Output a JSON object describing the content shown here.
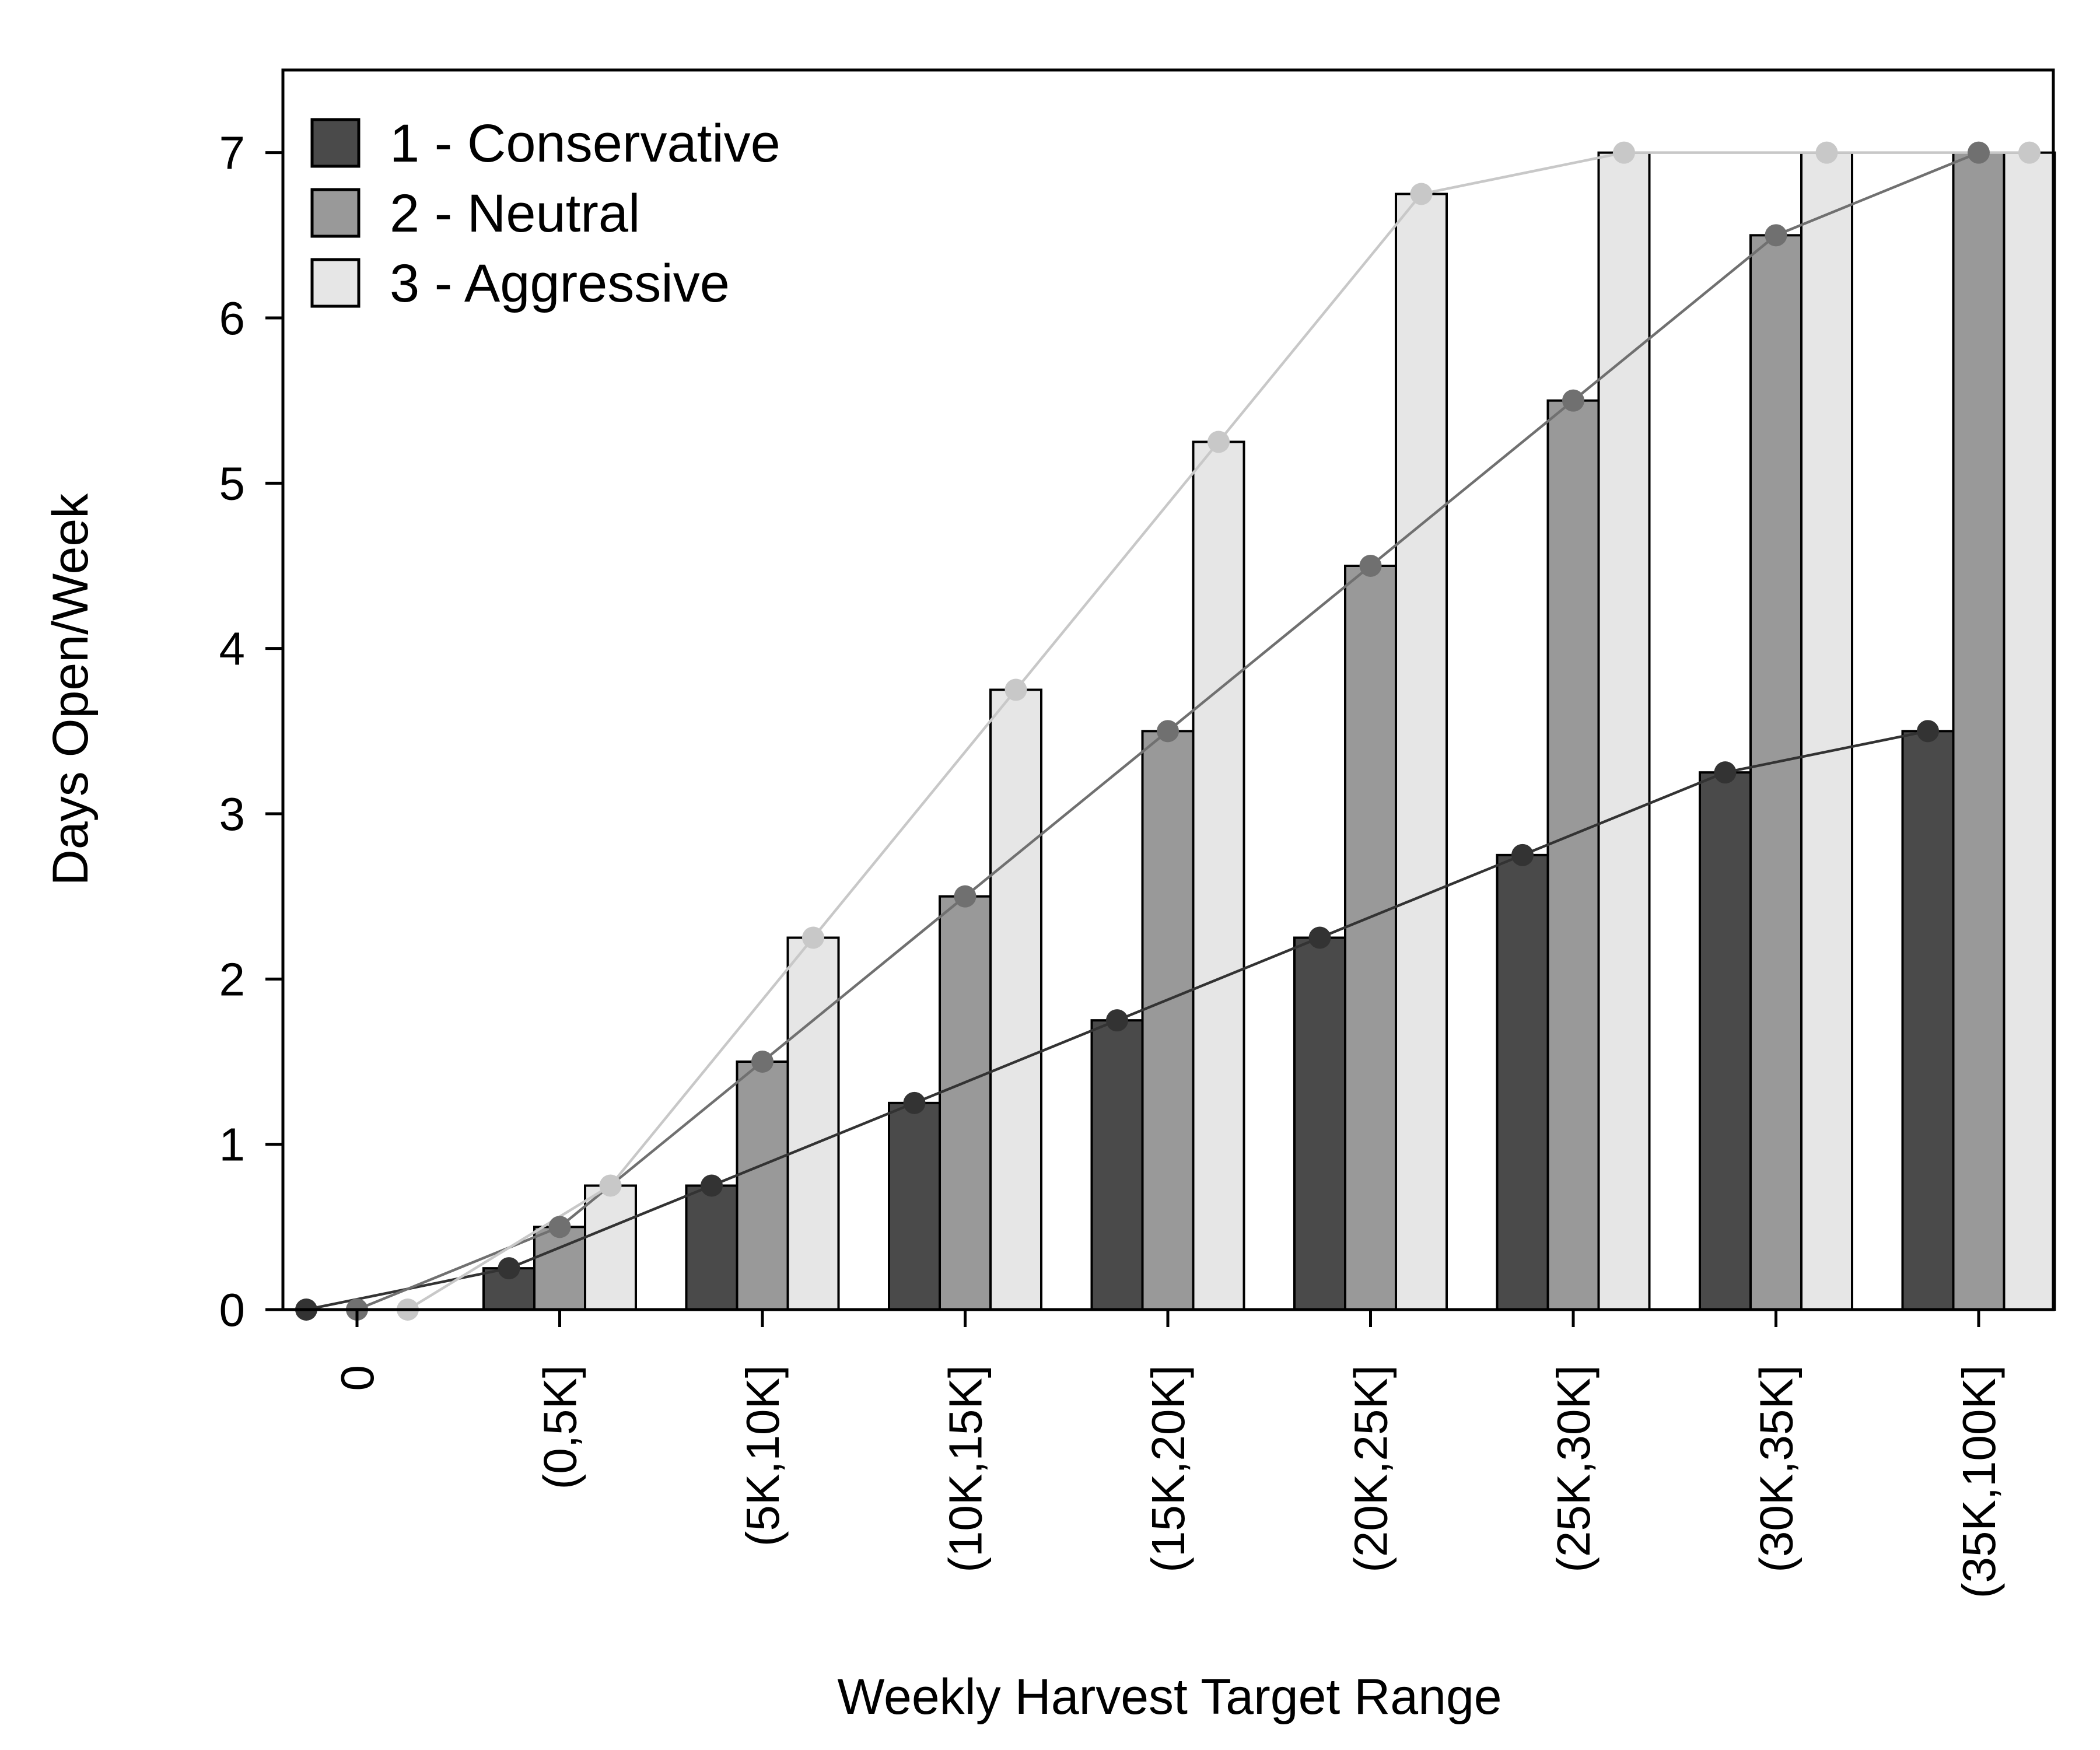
{
  "chart_data": {
    "type": "bar",
    "title": "",
    "xlabel": "Weekly Harvest Target Range",
    "ylabel": "Days Open/Week",
    "ylim": [
      0,
      7.5
    ],
    "yticks": [
      0,
      1,
      2,
      3,
      4,
      5,
      6,
      7
    ],
    "grid": false,
    "legend_position": "top-left",
    "categories": [
      "0",
      "(0,5K]",
      "(5K,10K]",
      "(10K,15K]",
      "(15K,20K]",
      "(20K,25K]",
      "(25K,30K]",
      "(30K,35K]",
      "(35K,100K]"
    ],
    "series": [
      {
        "name": "1 - Conservative",
        "color": "#4a4a4a",
        "line_color": "#333333",
        "values": [
          0,
          0.25,
          0.75,
          1.25,
          1.75,
          2.25,
          2.75,
          3.25,
          3.5
        ]
      },
      {
        "name": "2 - Neutral",
        "color": "#999999",
        "line_color": "#707070",
        "values": [
          0,
          0.5,
          1.5,
          2.5,
          3.5,
          4.5,
          5.5,
          6.5,
          7
        ]
      },
      {
        "name": "3 - Aggressive",
        "color": "#e6e6e6",
        "line_color": "#c8c8c8",
        "values": [
          0,
          0.75,
          2.25,
          3.75,
          5.25,
          6.75,
          7,
          7,
          7
        ]
      }
    ],
    "overlay": "lines with point markers on bar tops"
  }
}
